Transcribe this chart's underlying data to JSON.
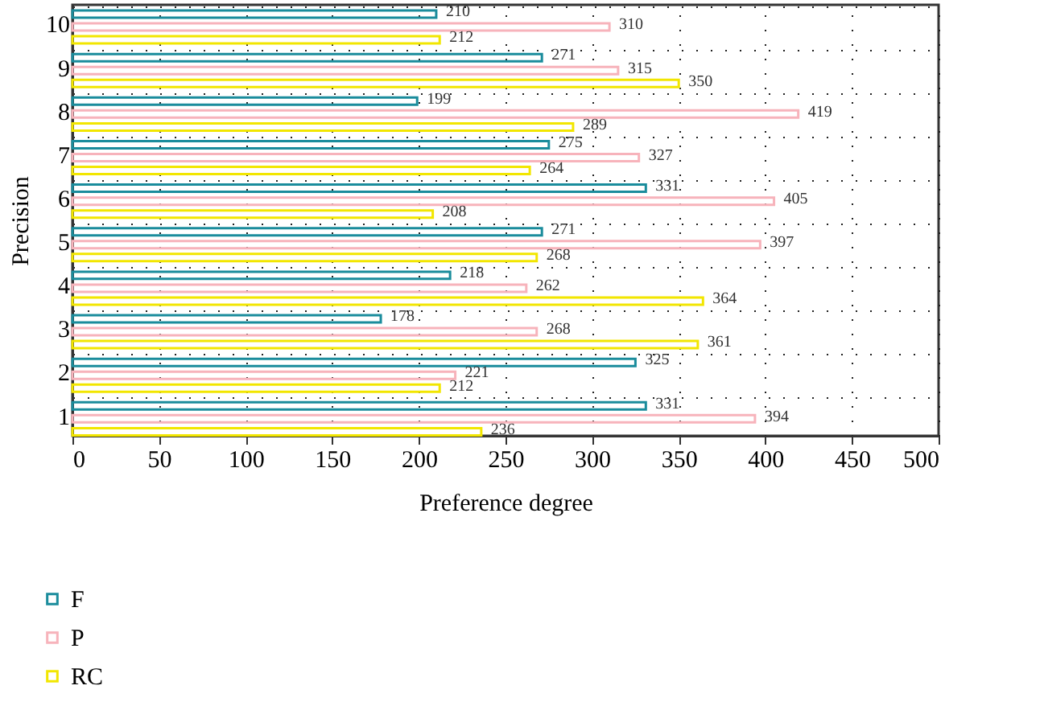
{
  "chart_data": {
    "type": "bar",
    "orientation": "horizontal",
    "xlabel": "Preference degree",
    "ylabel": "Precision",
    "categories": [
      "10",
      "9",
      "8",
      "7",
      "6",
      "5",
      "4",
      "3",
      "2",
      "1"
    ],
    "series": [
      {
        "name": "F",
        "color": "#1a8c9c",
        "values": [
          210,
          271,
          199,
          275,
          331,
          271,
          218,
          178,
          325,
          331
        ]
      },
      {
        "name": "P",
        "color": "#f7b3bb",
        "values": [
          310,
          315,
          419,
          327,
          405,
          397,
          262,
          268,
          221,
          394
        ]
      },
      {
        "name": "RC",
        "color": "#f2e600",
        "values": [
          212,
          350,
          289,
          264,
          208,
          268,
          364,
          361,
          212,
          236
        ]
      }
    ],
    "xlim": [
      0,
      500
    ],
    "xticks": [
      0,
      50,
      100,
      150,
      200,
      250,
      300,
      350,
      400,
      450,
      500
    ],
    "grid": true,
    "legend": "bottom left",
    "data_labels": true
  }
}
